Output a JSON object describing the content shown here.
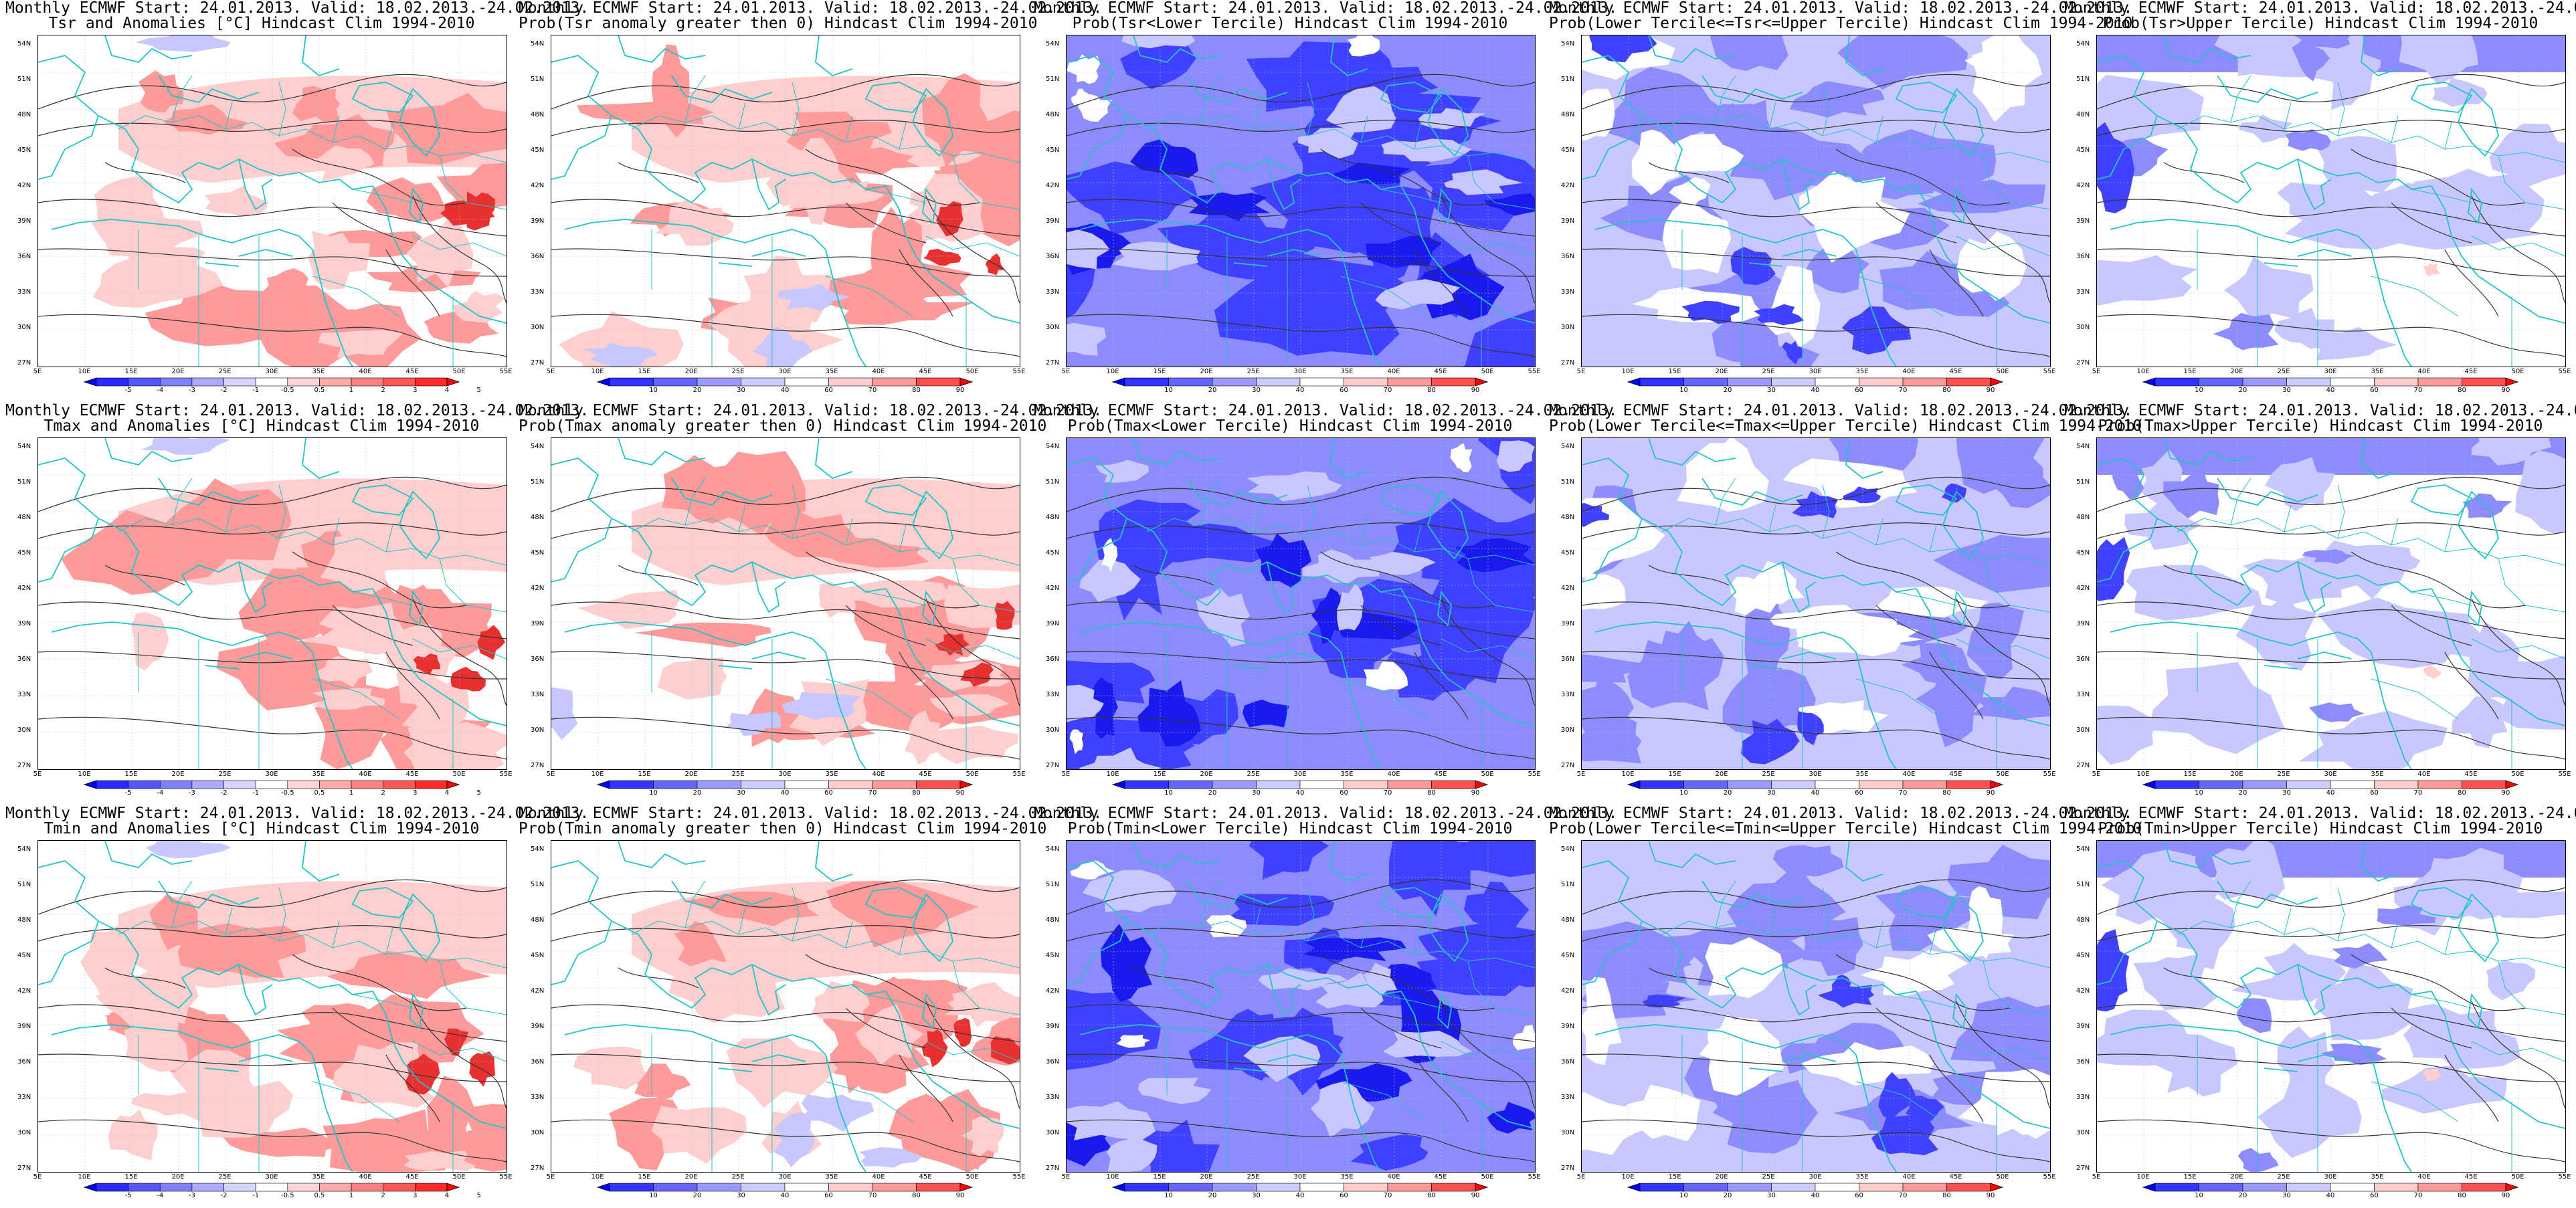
{
  "common": {
    "title_prefix": "Monthly ECMWF Start: 24.01.2013. Valid: 18.02.2013.-24.02.2013.",
    "lat_ticks": [
      "54N",
      "51N",
      "48N",
      "45N",
      "42N",
      "39N",
      "36N",
      "33N",
      "30N",
      "27N"
    ],
    "lon_ticks": [
      "5E",
      "10E",
      "15E",
      "20E",
      "25E",
      "30E",
      "35E",
      "40E",
      "45E",
      "50E",
      "55E"
    ]
  },
  "scales": {
    "anom": {
      "labels": [
        "-5",
        "-4",
        "-3",
        "-2",
        "-1",
        "-0.5",
        "0.5",
        "1",
        "2",
        "3",
        "4",
        "5"
      ],
      "colors": [
        "#0000ff",
        "#2a2aff",
        "#5555ff",
        "#8080ff",
        "#aaaaff",
        "#d4d4ff",
        "#ffffff",
        "#ffd4d4",
        "#ffaaaa",
        "#ff8080",
        "#ff5555",
        "#ff2a2a",
        "#ff0000"
      ]
    },
    "anom_tsr": {
      "labels": [
        "-5",
        "-4",
        "-3",
        "-2",
        "-1",
        "-0.5",
        "0.5",
        "1",
        "2",
        "3",
        "4",
        "5"
      ]
    },
    "prob": {
      "labels": [
        "10",
        "20",
        "30",
        "40",
        "60",
        "70",
        "80",
        "90"
      ],
      "colors": [
        "#0000ff",
        "#3333ff",
        "#6666ff",
        "#9999ff",
        "#ccccff",
        "#ffffff",
        "#ffcccc",
        "#ff9999",
        "#ff5050",
        "#ff0000"
      ]
    }
  },
  "colors": {
    "coast": "#22c4c4",
    "contour": "#333333",
    "red_shade": "#ff9a9a",
    "red_light": "#ffcfcf",
    "red_strong": "#e83030",
    "blue_light": "#c8c8ff",
    "blue_mid": "#8c8cff",
    "blue_strong": "#4040ff",
    "blue_dark": "#1a1aee"
  },
  "panels": [
    {
      "id": "r1c1",
      "title2": "Tsr and Anomalies [°C] Hindcast Clim 1994-2010",
      "scale": "anom",
      "style": "warm"
    },
    {
      "id": "r1c2",
      "title2": "Prob(Tsr anomaly greater then 0) Hindcast Clim 1994-2010",
      "scale": "prob",
      "style": "warm_prob"
    },
    {
      "id": "r1c3",
      "title2": "Prob(Tsr<Lower Tercile) Hindcast Clim 1994-2010",
      "scale": "prob",
      "style": "blue_heavy"
    },
    {
      "id": "r1c4",
      "title2": "Prob(Lower Tercile<=Tsr<=Upper Tercile) Hindcast Clim 1994-2010",
      "scale": "prob",
      "style": "blue_mixed"
    },
    {
      "id": "r1c5",
      "title2": "Prob(Tsr>Upper Tercile) Hindcast Clim 1994-2010",
      "scale": "prob",
      "style": "blue_light"
    },
    {
      "id": "r2c1",
      "title2": "Tmax and Anomalies [°C] Hindcast Clim 1994-2010",
      "scale": "anom",
      "style": "warm"
    },
    {
      "id": "r2c2",
      "title2": "Prob(Tmax anomaly greater then 0) Hindcast Clim 1994-2010",
      "scale": "prob",
      "style": "warm_prob"
    },
    {
      "id": "r2c3",
      "title2": "Prob(Tmax<Lower Tercile) Hindcast Clim 1994-2010",
      "scale": "prob",
      "style": "blue_heavy"
    },
    {
      "id": "r2c4",
      "title2": "Prob(Lower Tercile<=Tmax<=Upper Tercile) Hindcast Clim 1994-2010",
      "scale": "prob",
      "style": "blue_mixed"
    },
    {
      "id": "r2c5",
      "title2": "Prob(Tmax>Upper Tercile) Hindcast Clim 1994-2010",
      "scale": "prob",
      "style": "blue_light"
    },
    {
      "id": "r3c1",
      "title2": "Tmin and Anomalies [°C] Hindcast Clim 1994-2010",
      "scale": "anom",
      "style": "warm"
    },
    {
      "id": "r3c2",
      "title2": "Prob(Tmin anomaly greater then 0) Hindcast Clim 1994-2010",
      "scale": "prob",
      "style": "warm_prob"
    },
    {
      "id": "r3c3",
      "title2": "Prob(Tmin<Lower Tercile) Hindcast Clim 1994-2010",
      "scale": "prob",
      "style": "blue_heavy"
    },
    {
      "id": "r3c4",
      "title2": "Prob(Lower Tercile<=Tmin<=Upper Tercile) Hindcast Clim 1994-2010",
      "scale": "prob",
      "style": "blue_mixed"
    },
    {
      "id": "r3c5",
      "title2": "Prob(Tmin>Upper Tercile) Hindcast Clim 1994-2010",
      "scale": "prob",
      "style": "blue_light"
    }
  ]
}
